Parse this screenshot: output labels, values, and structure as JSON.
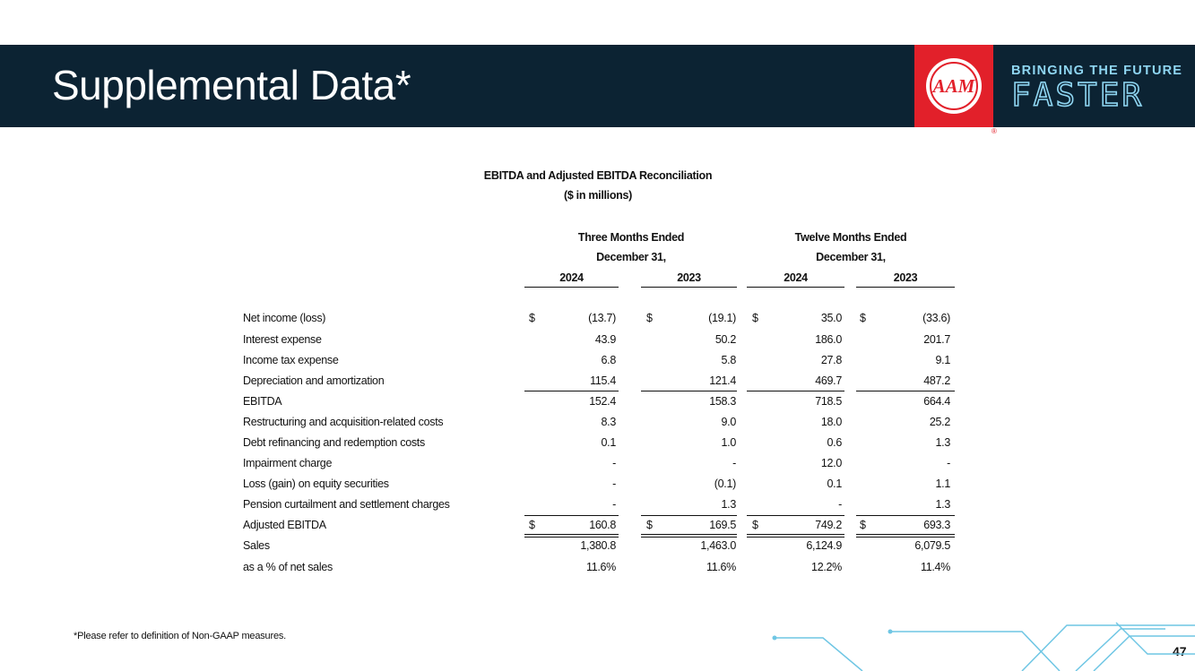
{
  "header": {
    "title": "Supplemental Data*"
  },
  "logo": {
    "text": "AAM",
    "registered": "®",
    "tagline": "BRINGING THE FUTURE",
    "tagline_emphasis": "FASTER"
  },
  "table": {
    "title": "EBITDA and Adjusted EBITDA Reconciliation",
    "subtitle": "($ in millions)",
    "column_groups": [
      {
        "label": "Three Months Ended",
        "sublabel": "December 31,"
      },
      {
        "label": "Twelve Months Ended",
        "sublabel": "December 31,"
      }
    ],
    "years": [
      "2024",
      "2023",
      "2024",
      "2023"
    ],
    "rows": [
      {
        "label": "Net income (loss)",
        "currency": "$",
        "values": [
          "(13.7)",
          "(19.1)",
          "35.0",
          "(33.6)"
        ]
      },
      {
        "label": "Interest expense",
        "values": [
          "43.9",
          "50.2",
          "186.0",
          "201.7"
        ]
      },
      {
        "label": "Income tax expense",
        "values": [
          "6.8",
          "5.8",
          "27.8",
          "9.1"
        ]
      },
      {
        "label": "Depreciation and amortization",
        "values": [
          "115.4",
          "121.4",
          "469.7",
          "487.2"
        ]
      },
      {
        "label": "EBITDA",
        "values": [
          "152.4",
          "158.3",
          "718.5",
          "664.4"
        ]
      },
      {
        "label": "Restructuring and acquisition-related costs",
        "values": [
          "8.3",
          "9.0",
          "18.0",
          "25.2"
        ]
      },
      {
        "label": "Debt refinancing and redemption costs",
        "values": [
          "0.1",
          "1.0",
          "0.6",
          "1.3"
        ]
      },
      {
        "label": "Impairment charge",
        "values": [
          "-",
          "-",
          "12.0",
          "-"
        ]
      },
      {
        "label": "Loss (gain) on equity securities",
        "values": [
          "-",
          "(0.1)",
          "0.1",
          "1.1"
        ]
      },
      {
        "label": "Pension curtailment and settlement charges",
        "values": [
          "-",
          "1.3",
          "-",
          "1.3"
        ]
      },
      {
        "label": "Adjusted EBITDA",
        "currency": "$",
        "values": [
          "160.8",
          "169.5",
          "749.2",
          "693.3"
        ]
      },
      {
        "label": "Sales",
        "values": [
          "1,380.8",
          "1,463.0",
          "6,124.9",
          "6,079.5"
        ]
      },
      {
        "label": "as a % of net sales",
        "values": [
          "11.6%",
          "11.6%",
          "12.2%",
          "11.4%"
        ]
      }
    ]
  },
  "footnote": "*Please refer to definition of Non-GAAP measures.",
  "page_number": "47"
}
